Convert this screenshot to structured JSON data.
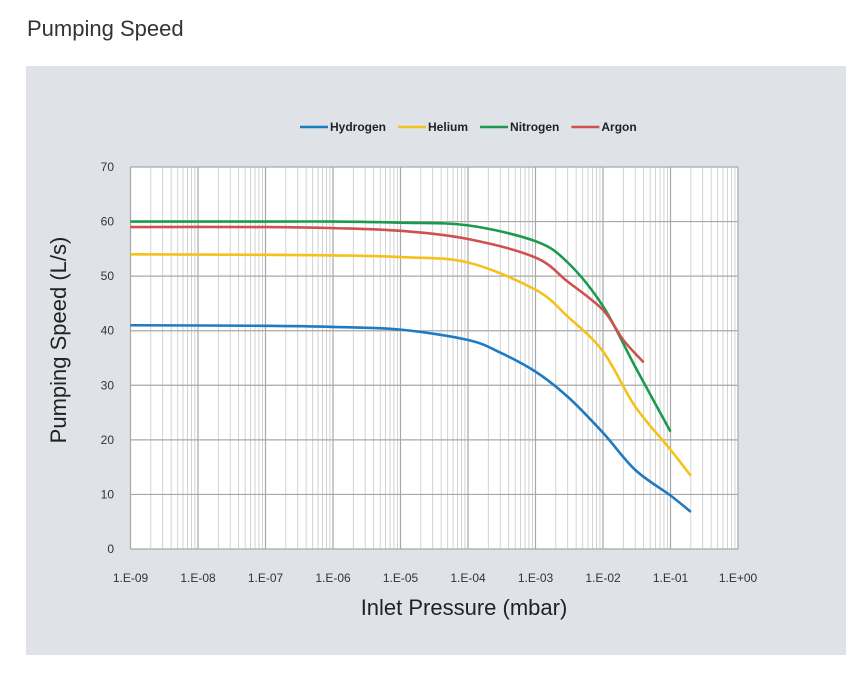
{
  "page_title": "Pumping Speed",
  "chart_data": {
    "type": "line",
    "title": "",
    "xlabel": "Inlet Pressure (mbar)",
    "ylabel": "Pumping Speed (L/s)",
    "xscale": "log",
    "xlim": [
      1e-09,
      1
    ],
    "ylim": [
      0,
      70
    ],
    "grid": true,
    "legend_position": "top-center",
    "x_tick_labels": [
      "1.E-09",
      "1.E-08",
      "1.E-07",
      "1.E-06",
      "1.E-05",
      "1.E-04",
      "1.E-03",
      "1.E-02",
      "1.E-01",
      "1.E+00"
    ],
    "y_tick_labels": [
      "0",
      "10",
      "20",
      "30",
      "40",
      "50",
      "60",
      "70"
    ],
    "series": [
      {
        "name": "Hydrogen",
        "color": "#1f7bc1",
        "x": [
          1e-09,
          1e-07,
          1e-06,
          1e-05,
          0.0001,
          0.0003,
          0.001,
          0.003,
          0.01,
          0.03,
          0.1,
          0.2
        ],
        "y": [
          41,
          40.9,
          40.7,
          40.2,
          38.3,
          36,
          32.5,
          27.9,
          21.3,
          14.5,
          9.8,
          6.8
        ]
      },
      {
        "name": "Helium",
        "color": "#f5c11b",
        "x": [
          1e-09,
          1e-07,
          1e-06,
          1e-05,
          0.0001,
          0.001,
          0.003,
          0.01,
          0.03,
          0.1,
          0.2
        ],
        "y": [
          54,
          53.9,
          53.8,
          53.5,
          52.5,
          47.5,
          42.6,
          36.2,
          26.1,
          18.2,
          13.4
        ]
      },
      {
        "name": "Nitrogen",
        "color": "#1b9a4f",
        "x": [
          1e-09,
          1e-07,
          1e-06,
          1e-05,
          0.0001,
          0.001,
          0.003,
          0.01,
          0.03,
          0.1
        ],
        "y": [
          60,
          60,
          60,
          59.8,
          59.3,
          56.4,
          52.5,
          44.5,
          33.4,
          21.5
        ]
      },
      {
        "name": "Argon",
        "color": "#d05050",
        "x": [
          1e-09,
          1e-07,
          1e-06,
          1e-05,
          0.0001,
          0.001,
          0.003,
          0.01,
          0.02,
          0.04
        ],
        "y": [
          59,
          59,
          58.8,
          58.3,
          56.8,
          53.4,
          49,
          43.8,
          38.3,
          34.2
        ]
      }
    ]
  }
}
